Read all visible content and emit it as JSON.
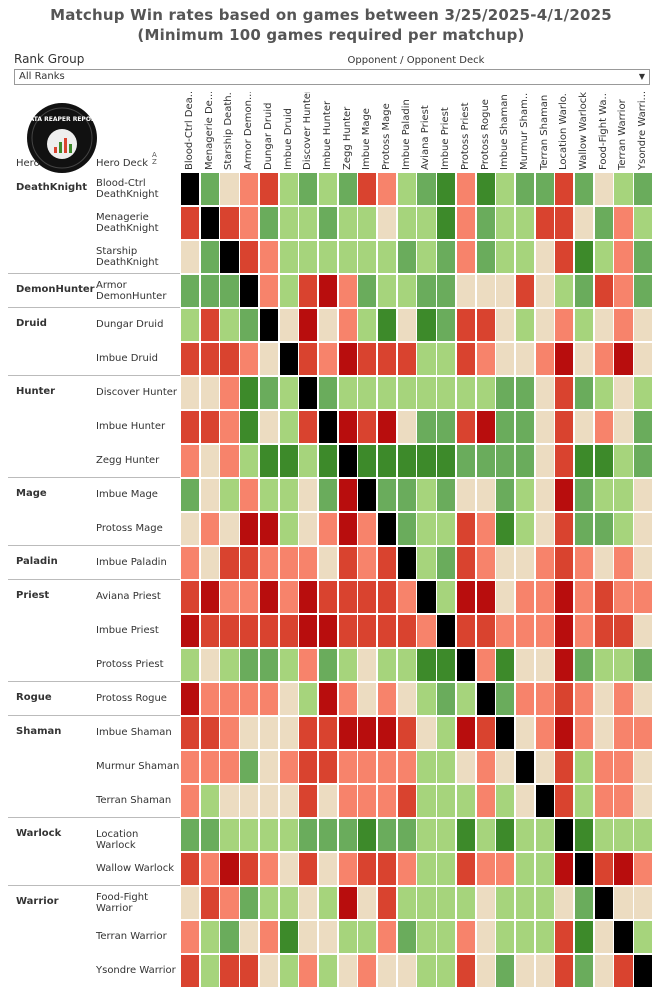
{
  "title_line1": "Matchup Win rates based on games between 3/25/2025-4/1/2025",
  "title_line2": "(Minimum 100 games required per matchup)",
  "rank_group": {
    "label": "Rank Group",
    "selected": "All Ranks"
  },
  "opponent_header": "Opponent / Opponent Deck",
  "hero_col_label": "Hero",
  "deck_col_label": "Hero Deck",
  "logo_text": "DATA REAPER REPORT",
  "colors": {
    "K": "#000000",
    "DR": "#b80d0d",
    "R": "#d9432f",
    "LR": "#f7836b",
    "N": "#ecdcc1",
    "LG": "#a6d47c",
    "G": "#6aac5c",
    "DG": "#3d8a2a"
  },
  "chart_data": {
    "type": "heatmap",
    "title": "Matchup Win rates based on games between 3/25/2025-4/1/2025",
    "subtitle": "(Minimum 100 games required per matchup)",
    "columns": [
      "Blood-Ctrl Dea...",
      "Menagerie De...",
      "Starship Death...",
      "Armor Demon...",
      "Dungar Druid",
      "Imbue Druid",
      "Discover Hunter",
      "Imbue Hunter",
      "Zegg Hunter",
      "Imbue Mage",
      "Protoss Mage",
      "Imbue Paladin",
      "Aviana Priest",
      "Imbue Priest",
      "Protoss Priest",
      "Protoss Rogue",
      "Imbue Shaman",
      "Murmur Sham...",
      "Terran Shaman",
      "Location Warlo...",
      "Wallow Warlock",
      "Food-Fight Wa...",
      "Terran Warrior",
      "Ysondre Warri..."
    ],
    "rows": [
      {
        "hero": "DeathKnight",
        "deck": "Blood-Ctrl DeathKnight",
        "cells": [
          "K",
          "G",
          "N",
          "LR",
          "R",
          "LG",
          "G",
          "LG",
          "G",
          "R",
          "LR",
          "LG",
          "G",
          "DG",
          "LR",
          "DG",
          "LG",
          "G",
          "G",
          "R",
          "G",
          "N",
          "LG",
          "G"
        ]
      },
      {
        "hero": "",
        "deck": "Menagerie DeathKnight",
        "cells": [
          "R",
          "K",
          "R",
          "LR",
          "G",
          "LG",
          "LG",
          "G",
          "LG",
          "LG",
          "N",
          "LG",
          "LG",
          "DG",
          "LR",
          "G",
          "LG",
          "LG",
          "R",
          "R",
          "N",
          "G",
          "LR",
          "LG"
        ]
      },
      {
        "hero": "",
        "deck": "Starship DeathKnight",
        "cells": [
          "N",
          "G",
          "K",
          "R",
          "LR",
          "LG",
          "LG",
          "LG",
          "LG",
          "LG",
          "LG",
          "G",
          "LG",
          "G",
          "LR",
          "G",
          "LG",
          "LG",
          "N",
          "R",
          "DG",
          "LG",
          "LR",
          "G"
        ]
      },
      {
        "hero": "DemonHunter",
        "deck": "Armor DemonHunter",
        "cells": [
          "G",
          "G",
          "G",
          "K",
          "LR",
          "LG",
          "R",
          "DR",
          "LR",
          "G",
          "LG",
          "LG",
          "G",
          "G",
          "N",
          "N",
          "N",
          "R",
          "N",
          "LG",
          "G",
          "R",
          "LR",
          "G"
        ]
      },
      {
        "hero": "Druid",
        "deck": "Dungar Druid",
        "cells": [
          "LG",
          "R",
          "LG",
          "G",
          "K",
          "N",
          "DR",
          "N",
          "LR",
          "LG",
          "DG",
          "N",
          "DG",
          "G",
          "R",
          "R",
          "N",
          "LG",
          "N",
          "LR",
          "LG",
          "N",
          "LR",
          "N"
        ]
      },
      {
        "hero": "",
        "deck": "Imbue Druid",
        "cells": [
          "R",
          "R",
          "R",
          "LR",
          "N",
          "K",
          "R",
          "LR",
          "DR",
          "R",
          "R",
          "R",
          "LG",
          "LG",
          "R",
          "LR",
          "N",
          "N",
          "LR",
          "DR",
          "N",
          "LR",
          "DR",
          "N"
        ]
      },
      {
        "hero": "Hunter",
        "deck": "Discover Hunter",
        "cells": [
          "N",
          "N",
          "LR",
          "DG",
          "G",
          "LG",
          "K",
          "G",
          "LG",
          "LG",
          "LG",
          "LG",
          "LG",
          "LG",
          "LG",
          "LG",
          "G",
          "G",
          "N",
          "R",
          "G",
          "LG",
          "N",
          "LG"
        ]
      },
      {
        "hero": "",
        "deck": "Imbue Hunter",
        "cells": [
          "R",
          "R",
          "LR",
          "DG",
          "N",
          "LG",
          "R",
          "K",
          "DR",
          "R",
          "DR",
          "N",
          "G",
          "G",
          "R",
          "DR",
          "G",
          "G",
          "N",
          "R",
          "N",
          "LR",
          "N",
          "G"
        ]
      },
      {
        "hero": "",
        "deck": "Zegg Hunter",
        "cells": [
          "LR",
          "N",
          "LR",
          "LG",
          "DG",
          "DG",
          "LG",
          "DG",
          "K",
          "DG",
          "DG",
          "DG",
          "DG",
          "DG",
          "G",
          "G",
          "G",
          "G",
          "N",
          "R",
          "DG",
          "DG",
          "LG",
          "G"
        ]
      },
      {
        "hero": "Mage",
        "deck": "Imbue Mage",
        "cells": [
          "G",
          "N",
          "LG",
          "LR",
          "LG",
          "LG",
          "N",
          "G",
          "DR",
          "K",
          "G",
          "G",
          "LG",
          "G",
          "N",
          "N",
          "G",
          "LG",
          "N",
          "DR",
          "G",
          "LG",
          "LG",
          "N"
        ]
      },
      {
        "hero": "",
        "deck": "Protoss Mage",
        "cells": [
          "N",
          "LR",
          "N",
          "DR",
          "DR",
          "LG",
          "N",
          "LR",
          "DR",
          "LR",
          "K",
          "G",
          "LG",
          "LG",
          "R",
          "LR",
          "DG",
          "LG",
          "N",
          "R",
          "G",
          "G",
          "LG",
          "N"
        ]
      },
      {
        "hero": "Paladin",
        "deck": "Imbue Paladin",
        "cells": [
          "LR",
          "N",
          "R",
          "R",
          "LR",
          "LR",
          "LR",
          "N",
          "R",
          "LR",
          "R",
          "K",
          "LG",
          "G",
          "R",
          "LR",
          "N",
          "N",
          "LR",
          "R",
          "LR",
          "N",
          "LR",
          "N"
        ]
      },
      {
        "hero": "Priest",
        "deck": "Aviana Priest",
        "cells": [
          "R",
          "DR",
          "LR",
          "LR",
          "DR",
          "LR",
          "DR",
          "R",
          "R",
          "R",
          "R",
          "LR",
          "K",
          "LG",
          "DR",
          "DR",
          "N",
          "LR",
          "LR",
          "DR",
          "LR",
          "R",
          "LR",
          "LR"
        ]
      },
      {
        "hero": "",
        "deck": "Imbue Priest",
        "cells": [
          "DR",
          "R",
          "R",
          "R",
          "R",
          "R",
          "DR",
          "DR",
          "R",
          "R",
          "R",
          "R",
          "LR",
          "K",
          "R",
          "R",
          "LR",
          "LR",
          "LR",
          "DR",
          "LR",
          "R",
          "R",
          "N"
        ]
      },
      {
        "hero": "",
        "deck": "Protoss Priest",
        "cells": [
          "LG",
          "N",
          "LG",
          "G",
          "G",
          "LG",
          "LR",
          "G",
          "LG",
          "N",
          "LG",
          "LG",
          "DG",
          "DG",
          "K",
          "LR",
          "DG",
          "N",
          "N",
          "DR",
          "G",
          "LG",
          "LG",
          "G"
        ]
      },
      {
        "hero": "Rogue",
        "deck": "Protoss Rogue",
        "cells": [
          "DR",
          "LR",
          "LR",
          "LR",
          "LR",
          "N",
          "LG",
          "DR",
          "LR",
          "N",
          "LR",
          "N",
          "LG",
          "G",
          "LG",
          "K",
          "G",
          "LR",
          "LR",
          "R",
          "LR",
          "N",
          "LR",
          "N"
        ]
      },
      {
        "hero": "Shaman",
        "deck": "Imbue Shaman",
        "cells": [
          "R",
          "R",
          "LR",
          "N",
          "N",
          "N",
          "R",
          "R",
          "DR",
          "DR",
          "DR",
          "R",
          "N",
          "LG",
          "DR",
          "R",
          "K",
          "N",
          "LR",
          "DR",
          "LR",
          "N",
          "LR",
          "LR"
        ]
      },
      {
        "hero": "",
        "deck": "Murmur Shaman",
        "cells": [
          "LR",
          "LR",
          "LR",
          "G",
          "N",
          "LR",
          "R",
          "R",
          "LR",
          "LR",
          "LR",
          "LR",
          "LG",
          "LG",
          "N",
          "LR",
          "N",
          "K",
          "N",
          "R",
          "LG",
          "LR",
          "LR",
          "N"
        ]
      },
      {
        "hero": "",
        "deck": "Terran Shaman",
        "cells": [
          "LR",
          "LG",
          "N",
          "N",
          "N",
          "N",
          "R",
          "N",
          "LR",
          "LR",
          "LR",
          "R",
          "LG",
          "LG",
          "LG",
          "LR",
          "LG",
          "N",
          "K",
          "R",
          "LG",
          "LR",
          "LR",
          "N"
        ]
      },
      {
        "hero": "Warlock",
        "deck": "Location Warlock",
        "cells": [
          "G",
          "G",
          "LG",
          "LG",
          "LG",
          "LG",
          "G",
          "G",
          "G",
          "DG",
          "G",
          "G",
          "LG",
          "LG",
          "DG",
          "LG",
          "DG",
          "LG",
          "LG",
          "K",
          "DG",
          "LG",
          "LG",
          "LG"
        ]
      },
      {
        "hero": "",
        "deck": "Wallow Warlock",
        "cells": [
          "R",
          "LR",
          "DR",
          "R",
          "LR",
          "N",
          "R",
          "N",
          "LR",
          "R",
          "R",
          "LR",
          "LG",
          "LG",
          "R",
          "LR",
          "LR",
          "LG",
          "LG",
          "DR",
          "K",
          "R",
          "DR",
          "LR"
        ]
      },
      {
        "hero": "Warrior",
        "deck": "Food-Fight Warrior",
        "cells": [
          "N",
          "R",
          "LR",
          "G",
          "LG",
          "LG",
          "N",
          "LG",
          "DR",
          "N",
          "R",
          "LG",
          "LG",
          "LG",
          "LG",
          "N",
          "LG",
          "LG",
          "LG",
          "N",
          "G",
          "K",
          "N",
          "N"
        ]
      },
      {
        "hero": "",
        "deck": "Terran Warrior",
        "cells": [
          "LR",
          "LG",
          "G",
          "N",
          "LR",
          "DG",
          "N",
          "N",
          "LG",
          "LG",
          "LR",
          "G",
          "LG",
          "LG",
          "LR",
          "N",
          "LG",
          "LG",
          "LG",
          "R",
          "DG",
          "N",
          "K",
          "LG"
        ]
      },
      {
        "hero": "",
        "deck": "Ysondre Warrior",
        "cells": [
          "R",
          "LG",
          "R",
          "R",
          "N",
          "LG",
          "LR",
          "LG",
          "N",
          "LR",
          "N",
          "N",
          "LG",
          "LG",
          "R",
          "N",
          "G",
          "N",
          "N",
          "R",
          "G",
          "N",
          "R",
          "K"
        ]
      }
    ]
  }
}
